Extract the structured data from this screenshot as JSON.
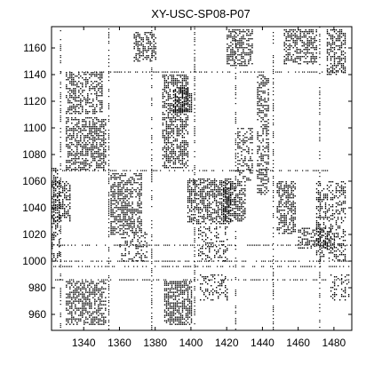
{
  "chart_data": {
    "type": "heatmap",
    "title": "XY-USC-SP08-P07",
    "xlabel": "",
    "ylabel": "",
    "xlim": [
      1322,
      1490
    ],
    "ylim": [
      948,
      1176
    ],
    "xticks": [
      1340,
      1360,
      1380,
      1400,
      1420,
      1440,
      1460,
      1480
    ],
    "yticks": [
      960,
      980,
      1000,
      1020,
      1040,
      1060,
      1080,
      1100,
      1120,
      1140,
      1160
    ],
    "grid": false,
    "colors": {
      "mark": "#000000",
      "background": "#ffffff"
    },
    "blocks": [
      {
        "x": [
          1330,
          1350
        ],
        "y": [
          1110,
          1142
        ],
        "density": 0.55
      },
      {
        "x": [
          1330,
          1352
        ],
        "y": [
          1068,
          1108
        ],
        "density": 0.6
      },
      {
        "x": [
          1322,
          1326
        ],
        "y": [
          1000,
          1070
        ],
        "density": 0.45
      },
      {
        "x": [
          1322,
          1332
        ],
        "y": [
          1030,
          1060
        ],
        "density": 0.45
      },
      {
        "x": [
          1355,
          1372
        ],
        "y": [
          1020,
          1066
        ],
        "density": 0.6
      },
      {
        "x": [
          1360,
          1375
        ],
        "y": [
          1000,
          1022
        ],
        "density": 0.3
      },
      {
        "x": [
          1330,
          1352
        ],
        "y": [
          952,
          985
        ],
        "density": 0.6
      },
      {
        "x": [
          1368,
          1380
        ],
        "y": [
          1150,
          1172
        ],
        "density": 0.5
      },
      {
        "x": [
          1384,
          1398
        ],
        "y": [
          1070,
          1140
        ],
        "density": 0.6
      },
      {
        "x": [
          1390,
          1400
        ],
        "y": [
          1112,
          1130
        ],
        "density": 0.7
      },
      {
        "x": [
          1385,
          1400
        ],
        "y": [
          952,
          985
        ],
        "density": 0.65
      },
      {
        "x": [
          1398,
          1422
        ],
        "y": [
          1028,
          1062
        ],
        "density": 0.6
      },
      {
        "x": [
          1404,
          1420
        ],
        "y": [
          1000,
          1026
        ],
        "density": 0.3
      },
      {
        "x": [
          1405,
          1420
        ],
        "y": [
          970,
          990
        ],
        "density": 0.35
      },
      {
        "x": [
          1418,
          1430
        ],
        "y": [
          1030,
          1060
        ],
        "density": 0.65
      },
      {
        "x": [
          1420,
          1434
        ],
        "y": [
          1146,
          1174
        ],
        "density": 0.55
      },
      {
        "x": [
          1426,
          1434
        ],
        "y": [
          1060,
          1100
        ],
        "density": 0.4
      },
      {
        "x": [
          1437,
          1443
        ],
        "y": [
          1050,
          1140
        ],
        "density": 0.5
      },
      {
        "x": [
          1448,
          1458
        ],
        "y": [
          1020,
          1060
        ],
        "density": 0.6
      },
      {
        "x": [
          1452,
          1470
        ],
        "y": [
          1148,
          1174
        ],
        "density": 0.5
      },
      {
        "x": [
          1460,
          1480
        ],
        "y": [
          1010,
          1025
        ],
        "density": 0.5
      },
      {
        "x": [
          1470,
          1486
        ],
        "y": [
          1000,
          1060
        ],
        "density": 0.4
      },
      {
        "x": [
          1476,
          1486
        ],
        "y": [
          1140,
          1174
        ],
        "density": 0.55
      },
      {
        "x": [
          1478,
          1488
        ],
        "y": [
          970,
          990
        ],
        "density": 0.3
      }
    ],
    "lines": [
      {
        "orientation": "h",
        "at": 1142,
        "from": 1326,
        "to": 1486
      },
      {
        "orientation": "h",
        "at": 1068,
        "from": 1322,
        "to": 1486
      },
      {
        "orientation": "h",
        "at": 1000,
        "from": 1322,
        "to": 1490
      },
      {
        "orientation": "h",
        "at": 996,
        "from": 1322,
        "to": 1490
      },
      {
        "orientation": "h",
        "at": 1012,
        "from": 1322,
        "to": 1490
      },
      {
        "orientation": "h",
        "at": 986,
        "from": 1322,
        "to": 1490
      },
      {
        "orientation": "v",
        "at": 1327,
        "from": 948,
        "to": 1176
      },
      {
        "orientation": "v",
        "at": 1354,
        "from": 948,
        "to": 1176
      },
      {
        "orientation": "v",
        "at": 1378,
        "from": 948,
        "to": 1176
      },
      {
        "orientation": "v",
        "at": 1402,
        "from": 948,
        "to": 1176
      },
      {
        "orientation": "v",
        "at": 1425,
        "from": 948,
        "to": 1176
      },
      {
        "orientation": "v",
        "at": 1446,
        "from": 948,
        "to": 1176
      },
      {
        "orientation": "v",
        "at": 1472,
        "from": 948,
        "to": 1176
      }
    ]
  }
}
